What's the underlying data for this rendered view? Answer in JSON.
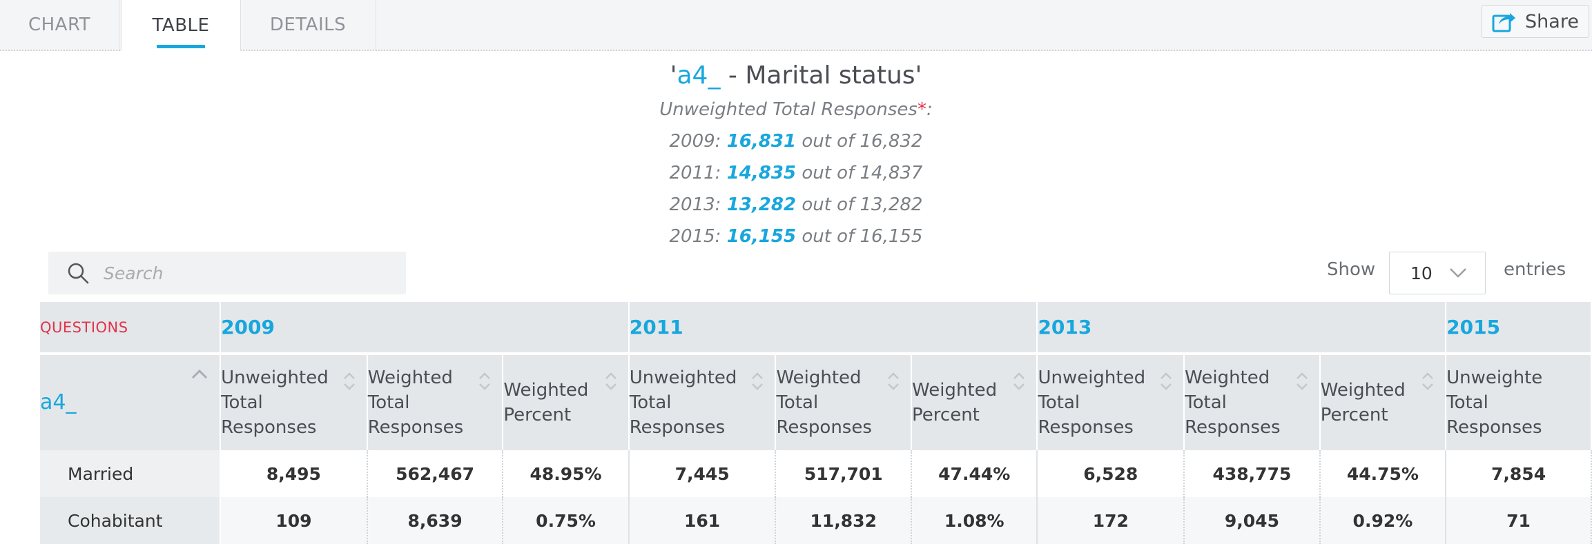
{
  "tabs": [
    {
      "label": "CHART"
    },
    {
      "label": "TABLE"
    },
    {
      "label": "DETAILS"
    }
  ],
  "share": {
    "label": "Share"
  },
  "title": {
    "open_quote": "'",
    "question_code": "a4_",
    "rest": " - Marital status'"
  },
  "responses": {
    "label": "Unweighted Total Responses",
    "star": "*",
    "colon": ":",
    "years": [
      {
        "year": "2009: ",
        "count": "16,831",
        "out_of": " out of 16,832"
      },
      {
        "year": "2011: ",
        "count": "14,835",
        "out_of": " out of 14,837"
      },
      {
        "year": "2013: ",
        "count": "13,282",
        "out_of": " out of 13,282"
      },
      {
        "year": "2015: ",
        "count": "16,155",
        "out_of": " out of 16,155"
      }
    ]
  },
  "search": {
    "placeholder": "Search"
  },
  "length": {
    "show": "Show",
    "value": "10",
    "entries": "entries"
  },
  "table": {
    "questions_label": "QUESTIONS",
    "row_header": "a4_",
    "years": [
      "2009",
      "2011",
      "2013",
      "2015"
    ],
    "col_headers": {
      "unweighted": [
        "Unweighted",
        "Total",
        "Responses"
      ],
      "weighted": [
        "Weighted",
        "Total",
        "Responses"
      ],
      "percent": [
        "Weighted",
        "Percent"
      ],
      "unweighted_partial": [
        "Unweighte",
        "Total",
        "Responses"
      ]
    },
    "rows": [
      {
        "label": "Married",
        "cells": [
          "8,495",
          "562,467",
          "48.95%",
          "7,445",
          "517,701",
          "47.44%",
          "6,528",
          "438,775",
          "44.75%",
          "7,854"
        ]
      },
      {
        "label": "Cohabitant",
        "cells": [
          "109",
          "8,639",
          "0.75%",
          "161",
          "11,832",
          "1.08%",
          "172",
          "9,045",
          "0.92%",
          "71"
        ]
      }
    ]
  },
  "colors": {
    "accent": "#18a7dd",
    "questions": "#e0344c"
  }
}
